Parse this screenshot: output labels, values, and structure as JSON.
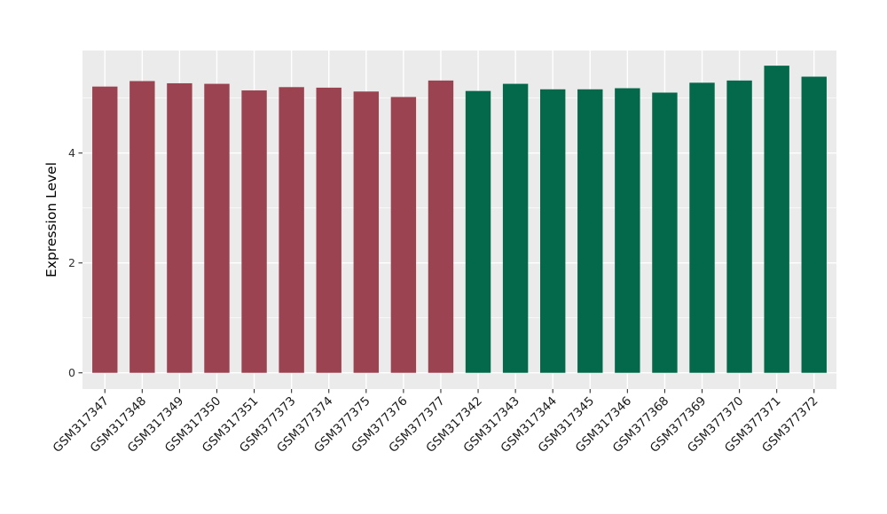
{
  "chart_data": {
    "type": "bar",
    "title": "",
    "xlabel": "",
    "ylabel": "Expression Level",
    "ylim": [
      0,
      5.87
    ],
    "yticks": [
      0,
      2,
      4
    ],
    "yticks_minor": [
      1,
      3,
      5
    ],
    "grid": "on",
    "legend_position": "none",
    "panel_background": "#EBEBEB",
    "gridline_color": "#FFFFFF",
    "tick_color": "#333333",
    "categories": [
      "GSM317347",
      "GSM317348",
      "GSM317349",
      "GSM317350",
      "GSM317351",
      "GSM377373",
      "GSM377374",
      "GSM377375",
      "GSM377376",
      "GSM377377",
      "GSM317342",
      "GSM317343",
      "GSM317344",
      "GSM317345",
      "GSM317346",
      "GSM377368",
      "GSM377369",
      "GSM377370",
      "GSM377371",
      "GSM377372"
    ],
    "values": [
      5.21,
      5.31,
      5.27,
      5.26,
      5.14,
      5.2,
      5.19,
      5.12,
      5.02,
      5.32,
      5.13,
      5.26,
      5.16,
      5.16,
      5.18,
      5.1,
      5.28,
      5.32,
      5.59,
      5.39
    ],
    "bar_color_groups": [
      "maroon",
      "maroon",
      "maroon",
      "maroon",
      "maroon",
      "maroon",
      "maroon",
      "maroon",
      "maroon",
      "maroon",
      "green",
      "green",
      "green",
      "green",
      "green",
      "green",
      "green",
      "green",
      "green",
      "green"
    ],
    "group_colors": {
      "maroon": "#9C4351",
      "green": "#04694A"
    }
  }
}
